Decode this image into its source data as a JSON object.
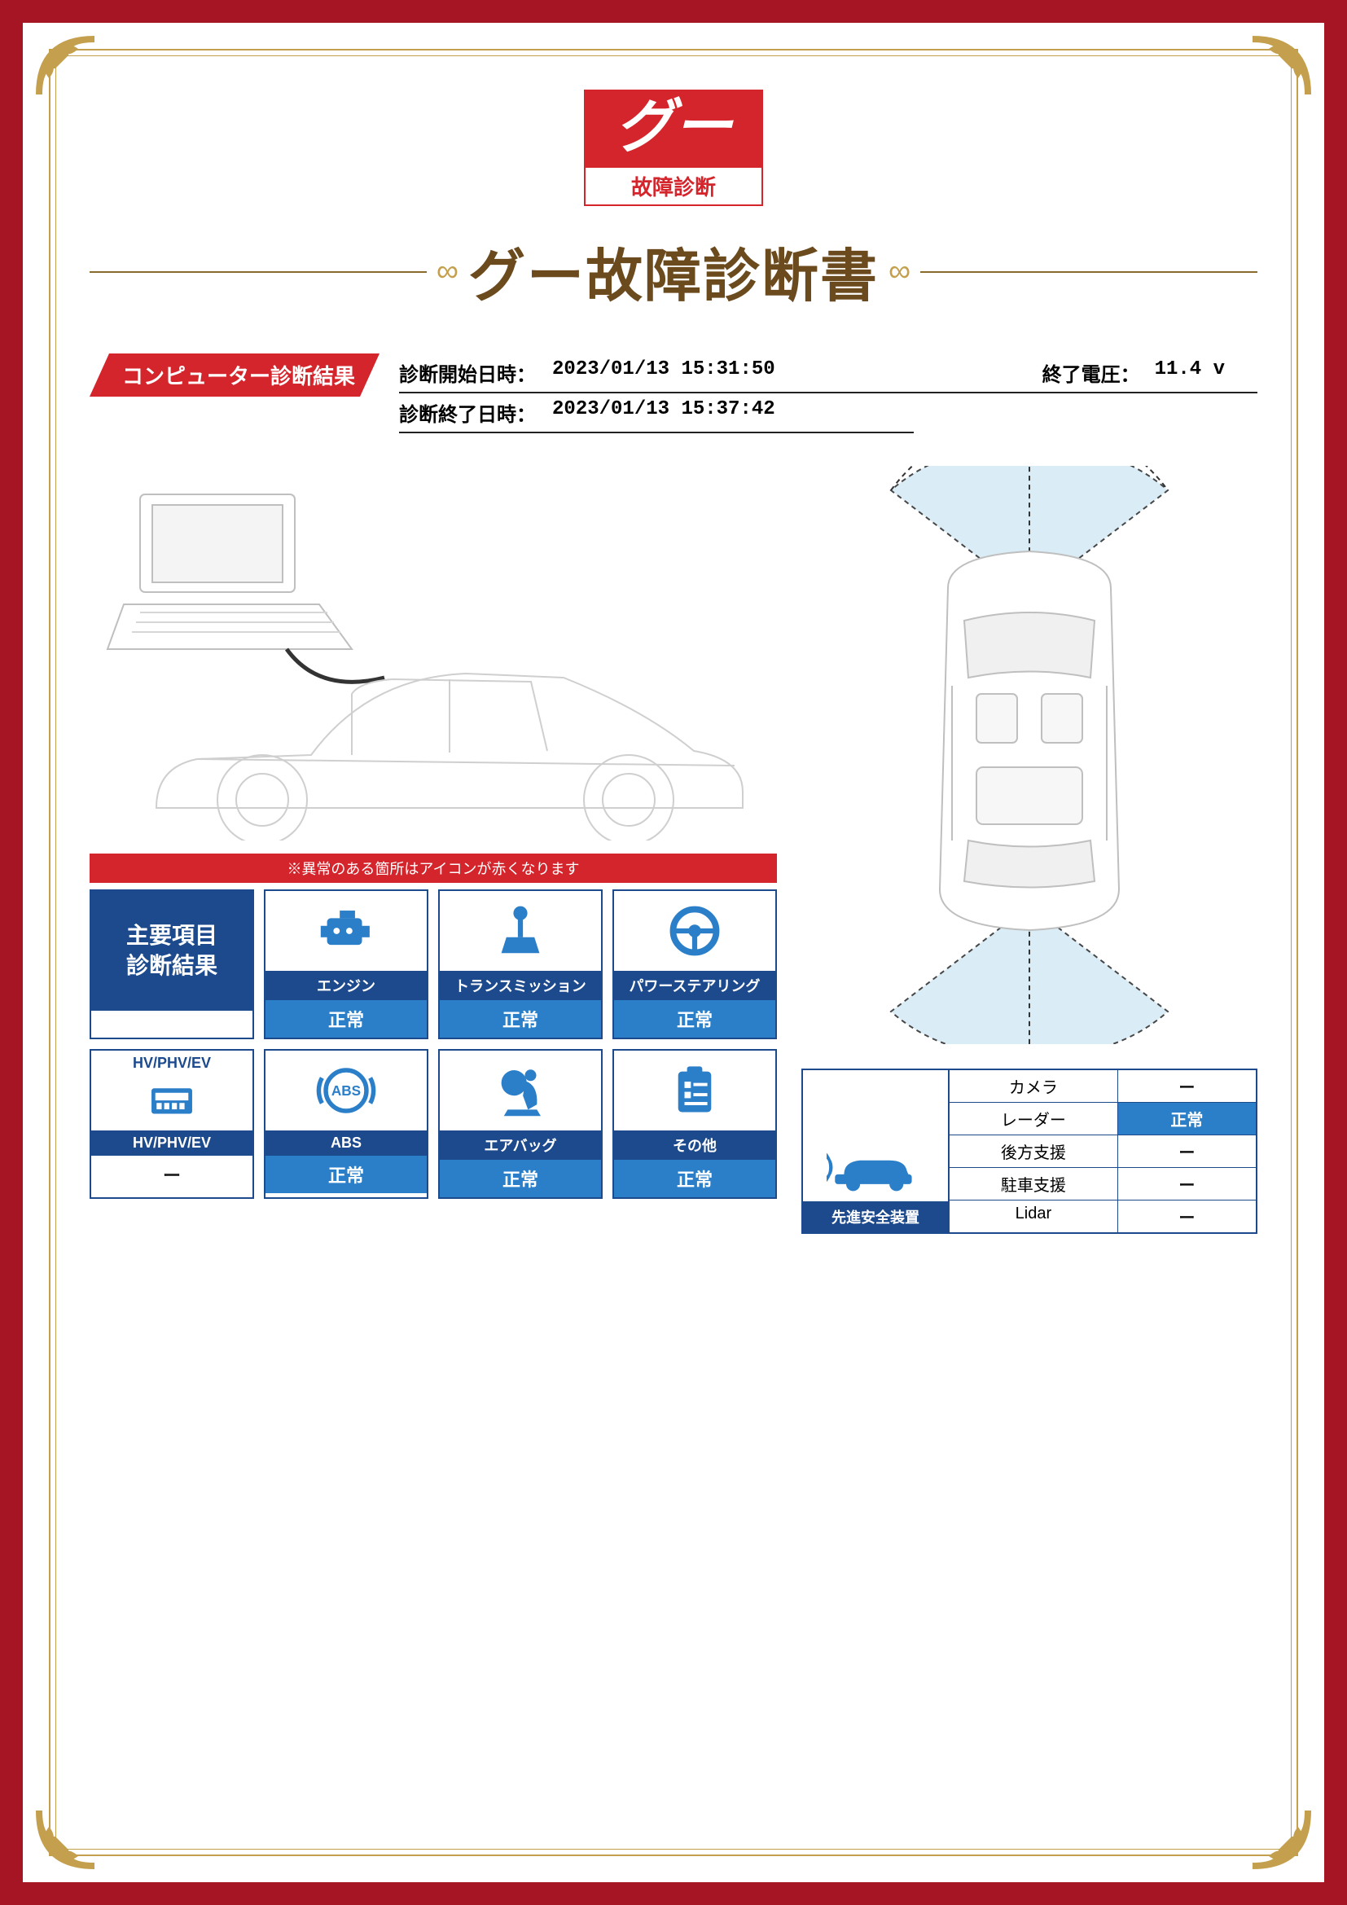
{
  "colors": {
    "border_red": "#a51523",
    "gold": "#c4a04e",
    "brand_red": "#d4252c",
    "navy": "#1c4a8c",
    "blue": "#2b7fc9",
    "title_brown": "#6b4a1e"
  },
  "logo": {
    "text": "グー",
    "sublabel": "故障診断"
  },
  "title": "グー故障診断書",
  "section_banner": "コンピューター診断結果",
  "info": {
    "start_label": "診断開始日時：",
    "start_value": "2023/01/13 15:31:50",
    "end_label": "診断終了日時：",
    "end_value": "2023/01/13 15:37:42",
    "voltage_label": "終了電圧：",
    "voltage_value": "11.4 v"
  },
  "warning_strip": "※異常のある箇所はアイコンが赤くなります",
  "header_cards": {
    "main_l1": "主要項目",
    "main_l2": "診断結果",
    "hv_top": "HV/PHV/EV"
  },
  "diag_items": [
    {
      "name": "エンジン",
      "status": "正常",
      "icon": "engine"
    },
    {
      "name": "トランスミッション",
      "status": "正常",
      "icon": "transmission"
    },
    {
      "name": "パワーステアリング",
      "status": "正常",
      "icon": "steering"
    },
    {
      "name": "HV/PHV/EV",
      "status": "ー",
      "icon": "hv",
      "blank": true
    },
    {
      "name": "ABS",
      "status": "正常",
      "icon": "abs"
    },
    {
      "name": "エアバッグ",
      "status": "正常",
      "icon": "airbag"
    },
    {
      "name": "その他",
      "status": "正常",
      "icon": "other"
    }
  ],
  "safety": {
    "label": "先進安全装置",
    "rows": [
      {
        "label": "カメラ",
        "value": "ー",
        "ok": false
      },
      {
        "label": "レーダー",
        "value": "正常",
        "ok": true
      },
      {
        "label": "後方支援",
        "value": "ー",
        "ok": false
      },
      {
        "label": "駐車支援",
        "value": "ー",
        "ok": false
      },
      {
        "label": "Lidar",
        "value": "ー",
        "ok": false
      }
    ]
  }
}
